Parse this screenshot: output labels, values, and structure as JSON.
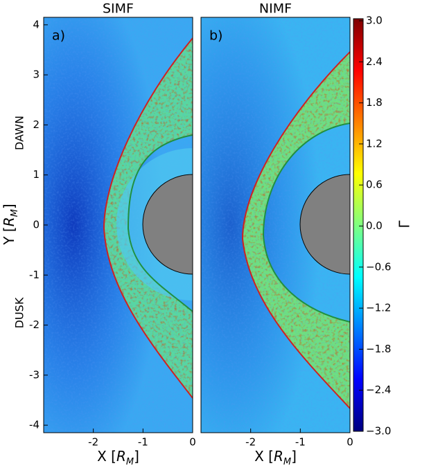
{
  "chart_data": [
    {
      "type": "heatmap",
      "title": "SIMF",
      "panel_label": "a)",
      "xlabel": [
        "X [",
        "R",
        "M",
        "]"
      ],
      "ylabel": [
        "Y [",
        "R",
        "M",
        "]"
      ],
      "annotations": [
        "DAWN",
        "DUSK"
      ],
      "xlim": [
        -3,
        0
      ],
      "xticks": [
        -2,
        -1,
        0
      ],
      "ylim": [
        -4.15,
        4.15
      ],
      "yticks": [
        -4,
        -3,
        -2,
        -1,
        0,
        1,
        2,
        3,
        4
      ]
    },
    {
      "type": "heatmap",
      "title": "NIMF",
      "panel_label": "b)",
      "xlabel": [
        "X [",
        "R",
        "M",
        "]"
      ],
      "xlim": [
        -3,
        0
      ],
      "xticks": [
        -2,
        -1,
        0
      ],
      "ylim": [
        -4.15,
        4.15
      ]
    },
    {
      "type": "colorbar",
      "label": "Γ",
      "colormap": "jet",
      "clim": [
        -3,
        3
      ],
      "ticks": [
        {
          "value": 3,
          "label": "3.0"
        },
        {
          "value": 2.4,
          "label": "2.4"
        },
        {
          "value": 1.8,
          "label": "1.8"
        },
        {
          "value": 1.2,
          "label": "1.2"
        },
        {
          "value": 0.6,
          "label": "0.6"
        },
        {
          "value": 0,
          "label": "0.0"
        },
        {
          "value": -0.6,
          "label": "−0.6"
        },
        {
          "value": -1.2,
          "label": "−1.2"
        },
        {
          "value": -1.8,
          "label": "−1.8"
        },
        {
          "value": -2.4,
          "label": "−2.4"
        },
        {
          "value": -3,
          "label": "−3.0"
        }
      ]
    }
  ]
}
